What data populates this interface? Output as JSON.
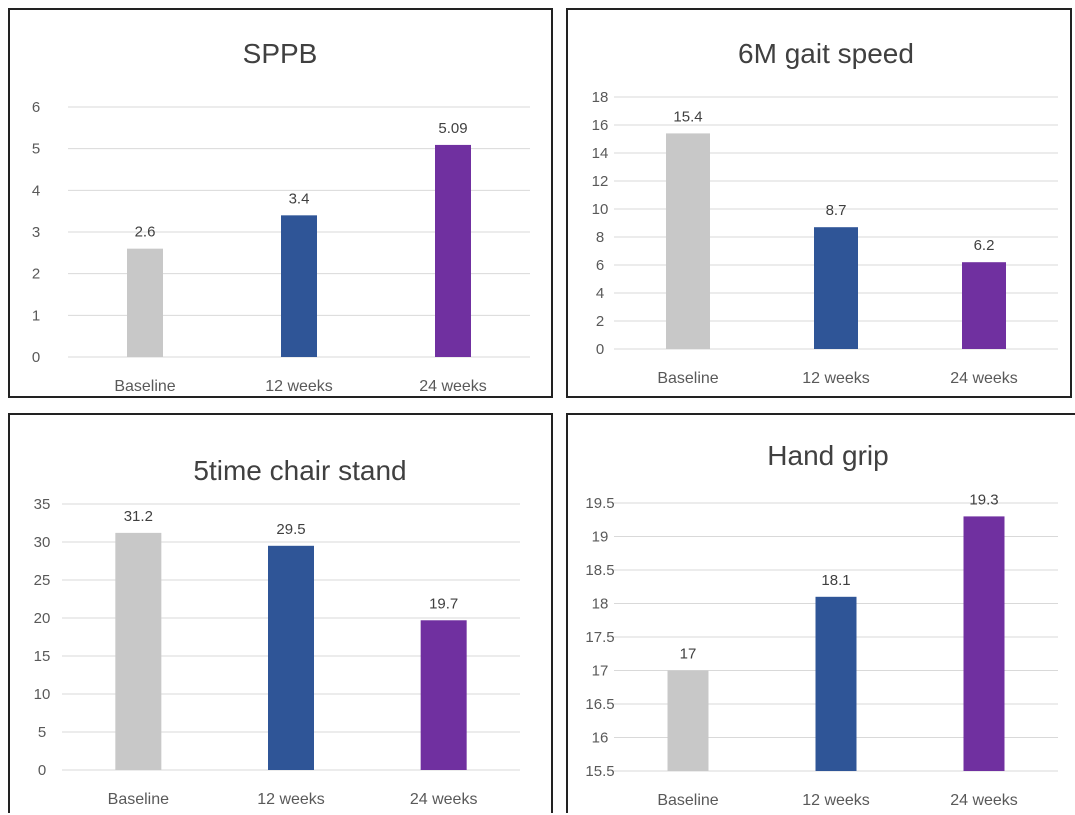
{
  "colors": {
    "baseline": "#c8c8c8",
    "week12": "#2f5597",
    "week24": "#7030a0",
    "grid": "#d9d9d9"
  },
  "chart_data": [
    {
      "type": "bar",
      "title": "SPPB",
      "categories": [
        "Baseline",
        "12 weeks",
        "24 weeks"
      ],
      "values": [
        2.6,
        3.4,
        5.09
      ],
      "data_labels": [
        "2.6",
        "3.4",
        "5.09"
      ],
      "ylim": [
        0,
        6
      ],
      "yticks": [
        "0",
        "1",
        "2",
        "3",
        "4",
        "5",
        "6"
      ],
      "grid": true,
      "legend": "none"
    },
    {
      "type": "bar",
      "title": "6M gait speed",
      "categories": [
        "Baseline",
        "12 weeks",
        "24 weeks"
      ],
      "values": [
        15.4,
        8.7,
        6.2
      ],
      "data_labels": [
        "15.4",
        "8.7",
        "6.2"
      ],
      "ylim": [
        0,
        18
      ],
      "yticks": [
        "0",
        "2",
        "4",
        "6",
        "8",
        "10",
        "12",
        "14",
        "16",
        "18"
      ],
      "grid": true,
      "legend": "none"
    },
    {
      "type": "bar",
      "title": "5time chair stand",
      "categories": [
        "Baseline",
        "12 weeks",
        "24 weeks"
      ],
      "values": [
        31.2,
        29.5,
        19.7
      ],
      "data_labels": [
        "31.2",
        "29.5",
        "19.7"
      ],
      "ylim": [
        0,
        35
      ],
      "yticks": [
        "0",
        "5",
        "10",
        "15",
        "20",
        "25",
        "30",
        "35"
      ],
      "grid": true,
      "legend": "none"
    },
    {
      "type": "bar",
      "title": "Hand grip",
      "categories": [
        "Baseline",
        "12 weeks",
        "24 weeks"
      ],
      "values": [
        17,
        18.1,
        19.3
      ],
      "data_labels": [
        "17",
        "18.1",
        "19.3"
      ],
      "ylim": [
        15.5,
        19.5
      ],
      "yticks": [
        "15.5",
        "16",
        "16.5",
        "17",
        "17.5",
        "18",
        "18.5",
        "19",
        "19.5"
      ],
      "grid": true,
      "legend": "none"
    }
  ]
}
